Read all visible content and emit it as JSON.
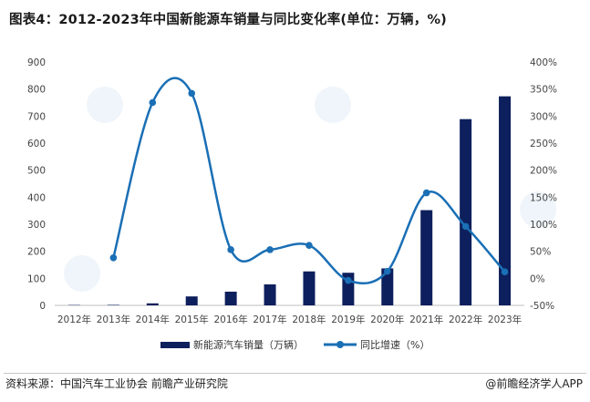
{
  "title": "图表4：2012-2023年中国新能源车销量与同比变化率(单位：万辆，%)",
  "chart_data": {
    "type": "bar",
    "categories": [
      "2012年",
      "2013年",
      "2014年",
      "2015年",
      "2016年",
      "2017年",
      "2018年",
      "2019年",
      "2020年",
      "2021年",
      "2022年",
      "2023年"
    ],
    "series": [
      {
        "name": "新能源汽车销量（万辆）",
        "type": "bar",
        "axis": "left",
        "values": [
          1.3,
          1.8,
          7.5,
          33.1,
          50.7,
          77.7,
          125.6,
          120.6,
          136.7,
          352.1,
          688.7,
          773.0
        ],
        "color": "#0d1f5c"
      },
      {
        "name": "同比增速（%）",
        "type": "line",
        "axis": "right",
        "values": [
          null,
          38,
          325,
          342,
          53,
          53,
          61,
          -4,
          13,
          158,
          96,
          12
        ],
        "color": "#1a6fb5"
      }
    ],
    "y_left": {
      "ylim": [
        0,
        900
      ],
      "ticks": [
        "0",
        "100",
        "200",
        "300",
        "400",
        "500",
        "600",
        "700",
        "800",
        "900"
      ]
    },
    "y_right": {
      "ylim": [
        -50,
        400
      ],
      "ticks": [
        "-50%",
        "0%",
        "50%",
        "100%",
        "150%",
        "200%",
        "250%",
        "300%",
        "350%",
        "400%"
      ]
    },
    "grid": false,
    "legend": "bottom-center"
  },
  "legend": {
    "bar_label": "新能源汽车销量（万辆）",
    "line_label": "同比增速（%）"
  },
  "footer": {
    "source": "资料来源：中国汽车工业协会 前瞻产业研究院",
    "brand": "@前瞻经济学人APP"
  }
}
